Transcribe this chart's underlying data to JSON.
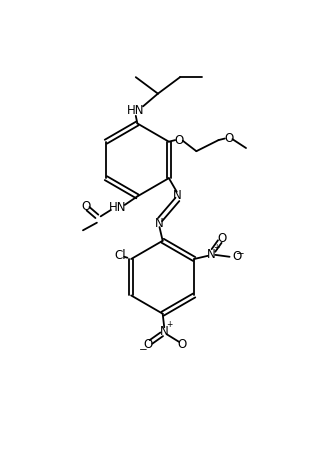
{
  "bg_color": "#ffffff",
  "line_color": "#000000",
  "lw": 1.3,
  "fs": 8.5,
  "xlim": [
    0,
    10
  ],
  "ylim": [
    0,
    14.2
  ],
  "fig_w": 3.19,
  "fig_h": 4.53,
  "dpi": 100
}
